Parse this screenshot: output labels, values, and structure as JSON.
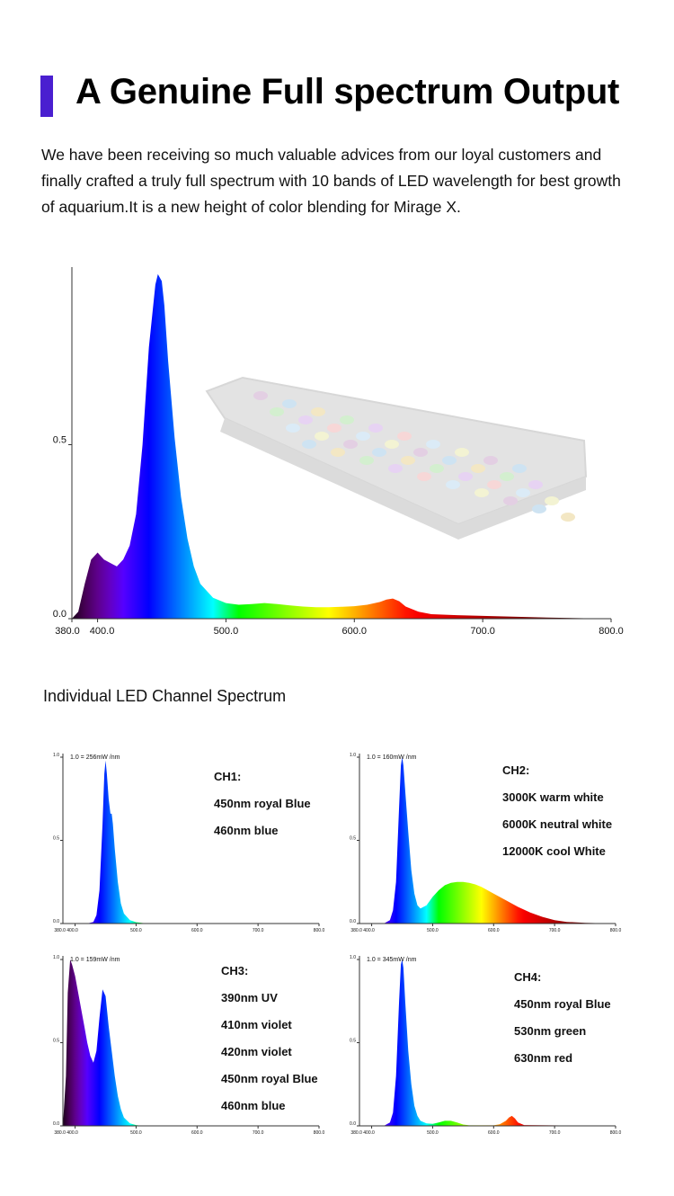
{
  "header": {
    "title": "A Genuine Full spectrum Output",
    "accent_color": "#4a1fd0",
    "intro": "We have been receiving so much valuable advices from our loyal customers and finally crafted a truly full spectrum with 10 bands of LED wavelength for best growth of aquarium.It is a new height of color blending for Mirage X."
  },
  "section_label": "Individual LED Channel Spectrum",
  "chart_data": [
    {
      "type": "area",
      "title": "",
      "x_tick_labels": [
        "380.0",
        "400.0",
        "500.0",
        "600.0",
        "700.0",
        "800.0"
      ],
      "x_ticks": [
        380,
        400,
        500,
        600,
        700,
        800
      ],
      "y_tick_labels": [
        "0.0",
        "0.5"
      ],
      "y_ticks": [
        0,
        0.5
      ],
      "xlim": [
        380,
        800
      ],
      "ylim": [
        0,
        1.0
      ],
      "fill": "wavelength-color gradient",
      "x": [
        380,
        385,
        390,
        395,
        400,
        405,
        410,
        415,
        420,
        425,
        430,
        435,
        440,
        445,
        447,
        450,
        452,
        455,
        460,
        465,
        470,
        475,
        480,
        490,
        500,
        510,
        520,
        530,
        540,
        550,
        560,
        570,
        580,
        590,
        600,
        610,
        620,
        625,
        630,
        635,
        640,
        650,
        660,
        680,
        700,
        750,
        800
      ],
      "y": [
        0.0,
        0.02,
        0.1,
        0.17,
        0.19,
        0.17,
        0.16,
        0.15,
        0.17,
        0.21,
        0.3,
        0.5,
        0.78,
        0.96,
        0.99,
        0.97,
        0.9,
        0.74,
        0.52,
        0.35,
        0.23,
        0.15,
        0.1,
        0.06,
        0.045,
        0.04,
        0.042,
        0.045,
        0.042,
        0.038,
        0.035,
        0.033,
        0.033,
        0.034,
        0.036,
        0.04,
        0.048,
        0.055,
        0.058,
        0.05,
        0.035,
        0.02,
        0.013,
        0.01,
        0.008,
        0.003,
        0.0
      ]
    },
    {
      "type": "area",
      "unit_label": "1.0 = 256mW /nm",
      "x_tick_labels": [
        "380.0 400.0",
        "500.0",
        "600.0",
        "700.0",
        "800.0"
      ],
      "y_tick_labels": [
        "0.0",
        "0.5",
        "1.0"
      ],
      "xlim": [
        380,
        800
      ],
      "ylim": [
        0,
        1.0
      ],
      "lines": [
        "CH1:",
        "450nm royal Blue",
        "460nm blue"
      ],
      "x": [
        380,
        420,
        430,
        435,
        440,
        445,
        448,
        450,
        452,
        455,
        458,
        460,
        462,
        465,
        470,
        475,
        480,
        490,
        500,
        510,
        520,
        800
      ],
      "y": [
        0.0,
        0.0,
        0.01,
        0.05,
        0.2,
        0.6,
        0.9,
        0.98,
        0.9,
        0.75,
        0.66,
        0.66,
        0.6,
        0.45,
        0.25,
        0.12,
        0.06,
        0.02,
        0.008,
        0.003,
        0.0,
        0.0
      ]
    },
    {
      "type": "area",
      "unit_label": "1.0 = 160mW /nm",
      "x_tick_labels": [
        "380.0 400.0",
        "500.0",
        "600.0",
        "700.0",
        "800.0"
      ],
      "y_tick_labels": [
        "0.0",
        "0.5",
        "1.0"
      ],
      "xlim": [
        380,
        800
      ],
      "ylim": [
        0,
        1.0
      ],
      "lines": [
        "CH2:",
        "3000K warm white",
        "6000K neutral white",
        "12000K cool White"
      ],
      "x": [
        380,
        420,
        430,
        435,
        440,
        445,
        448,
        450,
        452,
        455,
        460,
        465,
        470,
        475,
        480,
        490,
        500,
        510,
        520,
        530,
        540,
        550,
        560,
        570,
        580,
        590,
        600,
        620,
        640,
        660,
        680,
        700,
        720,
        750,
        800
      ],
      "y": [
        0.0,
        0.0,
        0.02,
        0.08,
        0.25,
        0.7,
        0.95,
        1.0,
        0.95,
        0.8,
        0.55,
        0.32,
        0.18,
        0.11,
        0.09,
        0.11,
        0.16,
        0.2,
        0.23,
        0.245,
        0.25,
        0.25,
        0.245,
        0.235,
        0.22,
        0.2,
        0.18,
        0.14,
        0.1,
        0.066,
        0.04,
        0.02,
        0.01,
        0.004,
        0.0
      ]
    },
    {
      "type": "area",
      "unit_label": "1.0 = 159mW /nm",
      "x_tick_labels": [
        "380.0 400.0",
        "500.0",
        "600.0",
        "700.0",
        "800.0"
      ],
      "y_tick_labels": [
        "0.0",
        "0.5",
        "1.0"
      ],
      "xlim": [
        380,
        800
      ],
      "ylim": [
        0,
        1.0
      ],
      "lines": [
        "CH3:",
        "390nm UV",
        "410nm violet",
        "420nm violet",
        "450nm royal Blue",
        "460nm blue"
      ],
      "x": [
        380,
        385,
        388,
        392,
        395,
        400,
        405,
        410,
        415,
        420,
        425,
        430,
        435,
        440,
        445,
        450,
        455,
        460,
        465,
        470,
        475,
        480,
        490,
        500,
        510,
        800
      ],
      "y": [
        0.0,
        0.3,
        0.8,
        1.0,
        0.97,
        0.9,
        0.8,
        0.7,
        0.6,
        0.5,
        0.42,
        0.38,
        0.45,
        0.65,
        0.82,
        0.78,
        0.6,
        0.45,
        0.3,
        0.18,
        0.1,
        0.05,
        0.015,
        0.005,
        0.0,
        0.0
      ]
    },
    {
      "type": "area",
      "unit_label": "1.0 = 345mW /nm",
      "x_tick_labels": [
        "380.0 400.0",
        "500.0",
        "600.0",
        "700.0",
        "800.0"
      ],
      "y_tick_labels": [
        "0.0",
        "0.5",
        "1.0"
      ],
      "xlim": [
        380,
        800
      ],
      "ylim": [
        0,
        1.0
      ],
      "lines": [
        "CH4:",
        "450nm royal Blue",
        "530nm green",
        "630nm red"
      ],
      "x": [
        380,
        420,
        430,
        435,
        440,
        445,
        448,
        450,
        452,
        455,
        460,
        465,
        470,
        475,
        480,
        490,
        500,
        510,
        520,
        530,
        540,
        550,
        560,
        600,
        610,
        620,
        625,
        630,
        635,
        640,
        650,
        800
      ],
      "y": [
        0.0,
        0.0,
        0.02,
        0.08,
        0.3,
        0.75,
        0.97,
        1.0,
        0.95,
        0.75,
        0.45,
        0.25,
        0.12,
        0.06,
        0.03,
        0.015,
        0.012,
        0.02,
        0.03,
        0.03,
        0.02,
        0.008,
        0.003,
        0.003,
        0.01,
        0.03,
        0.05,
        0.06,
        0.045,
        0.02,
        0.005,
        0.0
      ]
    }
  ]
}
